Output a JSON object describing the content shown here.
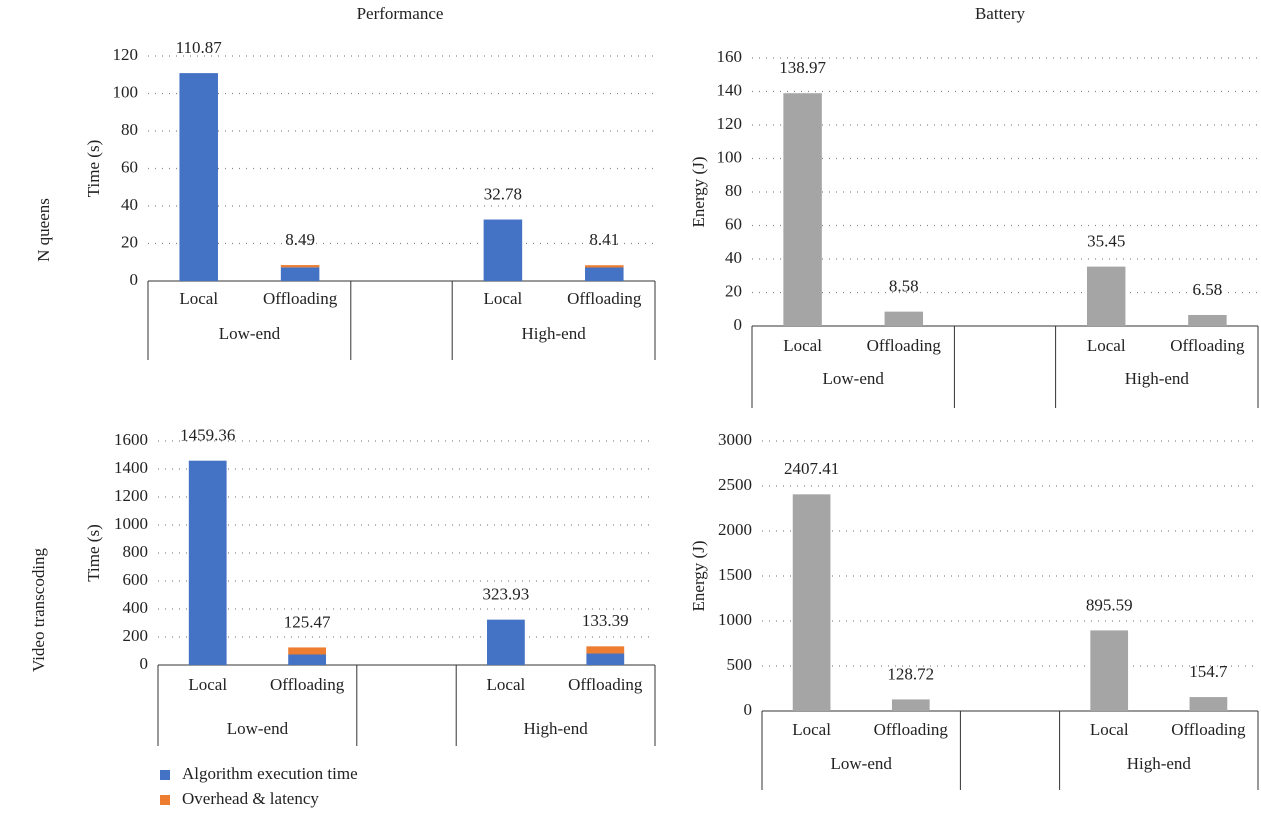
{
  "column_titles": [
    "Performance",
    "Battery"
  ],
  "row_labels": [
    "N queens",
    "Video transcoding"
  ],
  "chart_data": [
    {
      "type": "bar",
      "stacked": true,
      "ylabel": "Time (s)",
      "categories": [
        "Local",
        "Offloading",
        null,
        "Local",
        "Offloading"
      ],
      "groups": [
        "Low-end",
        null,
        "High-end"
      ],
      "series": [
        {
          "color": "#4472c4",
          "values": [
            110.87,
            7.3,
            null,
            32.78,
            7.2
          ]
        },
        {
          "color": "#ed7d31",
          "values": [
            0,
            1.19,
            null,
            0,
            1.21
          ]
        }
      ],
      "totals": [
        110.87,
        8.49,
        null,
        32.78,
        8.41
      ],
      "ylim": [
        0,
        120
      ],
      "yticks": [
        0,
        20,
        40,
        60,
        80,
        100,
        120
      ],
      "grid": true
    },
    {
      "type": "bar",
      "ylabel": "Energy (J)",
      "categories": [
        "Local",
        "Offloading",
        null,
        "Local",
        "Offloading"
      ],
      "groups": [
        "Low-end",
        null,
        "High-end"
      ],
      "series": [
        {
          "color": "#a5a5a5",
          "values": [
            138.97,
            8.58,
            null,
            35.45,
            6.58
          ]
        }
      ],
      "ylim": [
        0,
        160
      ],
      "yticks": [
        0,
        20,
        40,
        60,
        80,
        100,
        120,
        140,
        160
      ],
      "grid": true
    },
    {
      "type": "bar",
      "stacked": true,
      "ylabel": "Time (s)",
      "categories": [
        "Local",
        "Offloading",
        null,
        "Local",
        "Offloading"
      ],
      "groups": [
        "Low-end",
        null,
        "High-end"
      ],
      "series": [
        {
          "name": "Algorithm execution time",
          "color": "#4472c4",
          "values": [
            1459.36,
            75,
            null,
            323.93,
            82
          ]
        },
        {
          "name": "Overhead & latency",
          "color": "#ed7d31",
          "values": [
            0,
            50.47,
            null,
            0,
            51.39
          ]
        }
      ],
      "totals": [
        1459.36,
        125.47,
        null,
        323.93,
        133.39
      ],
      "ylim": [
        0,
        1600
      ],
      "yticks": [
        0,
        200,
        400,
        600,
        800,
        1000,
        1200,
        1400,
        1600
      ],
      "grid": true
    },
    {
      "type": "bar",
      "ylabel": "Energy (J)",
      "categories": [
        "Local",
        "Offloading",
        null,
        "Local",
        "Offloading"
      ],
      "groups": [
        "Low-end",
        null,
        "High-end"
      ],
      "series": [
        {
          "color": "#a5a5a5",
          "values": [
            2407.41,
            128.72,
            null,
            895.59,
            154.7
          ]
        }
      ],
      "ylim": [
        0,
        3000
      ],
      "yticks": [
        0,
        500,
        1000,
        1500,
        2000,
        2500,
        3000
      ],
      "grid": true
    }
  ]
}
